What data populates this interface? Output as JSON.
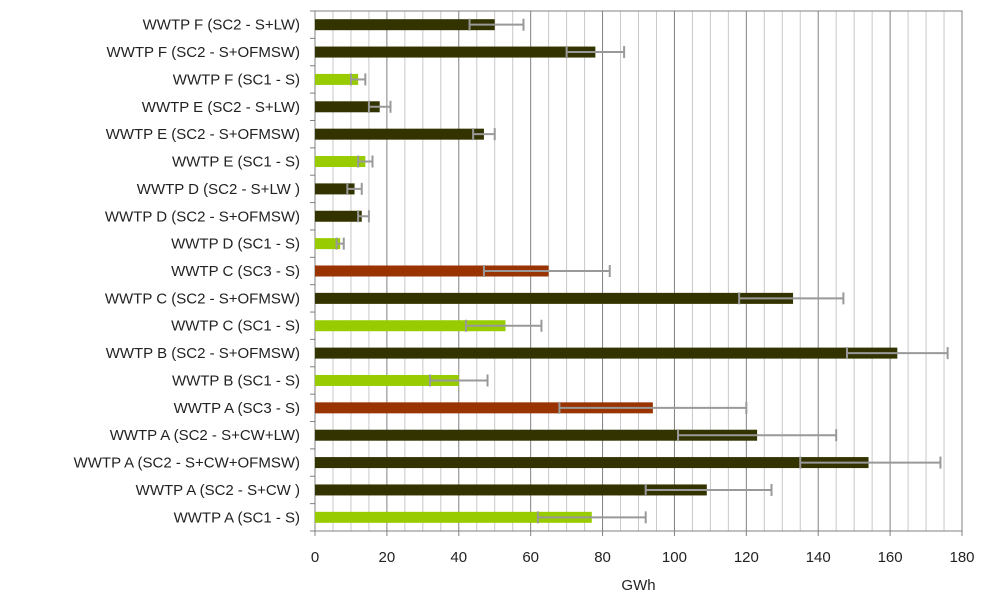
{
  "chart_data": {
    "type": "bar",
    "orientation": "horizontal",
    "xlabel": "GWh",
    "xlim": [
      0,
      180
    ],
    "major_ticks": [
      0,
      20,
      40,
      60,
      80,
      100,
      120,
      140,
      160,
      180
    ],
    "minor_gridlines_step": 5,
    "grid": true,
    "colors": {
      "SC1": "#99cc00",
      "SC2": "#333300",
      "SC3": "#993300",
      "error_bar": "#999999"
    },
    "bars": [
      {
        "label": "WWTP F (SC2 - S+LW)",
        "value": 50,
        "err_low": 43,
        "err_high": 58,
        "scenario": "SC2"
      },
      {
        "label": "WWTP F (SC2 - S+OFMSW)",
        "value": 78,
        "err_low": 70,
        "err_high": 86,
        "scenario": "SC2"
      },
      {
        "label": "WWTP F (SC1 - S)",
        "value": 12,
        "err_low": 10,
        "err_high": 14,
        "scenario": "SC1"
      },
      {
        "label": "WWTP E (SC2 - S+LW)",
        "value": 18,
        "err_low": 15,
        "err_high": 21,
        "scenario": "SC2"
      },
      {
        "label": "WWTP E (SC2 - S+OFMSW)",
        "value": 47,
        "err_low": 44,
        "err_high": 50,
        "scenario": "SC2"
      },
      {
        "label": "WWTP E (SC1 - S)",
        "value": 14,
        "err_low": 12,
        "err_high": 16,
        "scenario": "SC1"
      },
      {
        "label": "WWTP D (SC2 - S+LW )",
        "value": 11,
        "err_low": 9,
        "err_high": 13,
        "scenario": "SC2"
      },
      {
        "label": "WWTP D (SC2 - S+OFMSW)",
        "value": 13,
        "err_low": 12,
        "err_high": 15,
        "scenario": "SC2"
      },
      {
        "label": "WWTP D (SC1 - S)",
        "value": 7,
        "err_low": 6,
        "err_high": 8,
        "scenario": "SC1"
      },
      {
        "label": "WWTP C (SC3 - S)",
        "value": 65,
        "err_low": 47,
        "err_high": 82,
        "scenario": "SC3"
      },
      {
        "label": "WWTP C (SC2 - S+OFMSW)",
        "value": 133,
        "err_low": 118,
        "err_high": 147,
        "scenario": "SC2"
      },
      {
        "label": "WWTP C (SC1 - S)",
        "value": 53,
        "err_low": 42,
        "err_high": 63,
        "scenario": "SC1"
      },
      {
        "label": "WWTP B (SC2 - S+OFMSW)",
        "value": 162,
        "err_low": 148,
        "err_high": 176,
        "scenario": "SC2"
      },
      {
        "label": "WWTP B (SC1 - S)",
        "value": 40,
        "err_low": 32,
        "err_high": 48,
        "scenario": "SC1"
      },
      {
        "label": "WWTP A (SC3 - S)",
        "value": 94,
        "err_low": 68,
        "err_high": 120,
        "scenario": "SC3"
      },
      {
        "label": "WWTP A (SC2 - S+CW+LW)",
        "value": 123,
        "err_low": 101,
        "err_high": 145,
        "scenario": "SC2"
      },
      {
        "label": "WWTP A (SC2 - S+CW+OFMSW)",
        "value": 154,
        "err_low": 135,
        "err_high": 174,
        "scenario": "SC2"
      },
      {
        "label": "WWTP A (SC2 - S+CW )",
        "value": 109,
        "err_low": 92,
        "err_high": 127,
        "scenario": "SC2"
      },
      {
        "label": "WWTP A (SC1 - S)",
        "value": 77,
        "err_low": 62,
        "err_high": 92,
        "scenario": "SC1"
      }
    ]
  }
}
